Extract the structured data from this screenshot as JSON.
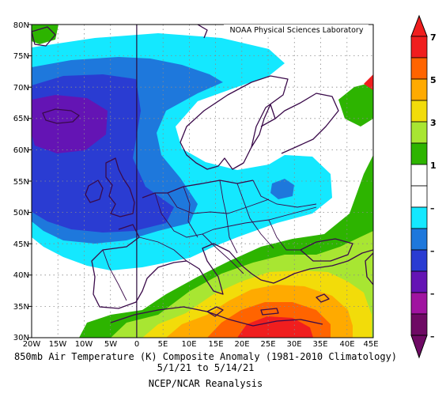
{
  "credit": "NOAA Physical Sciences Laboratory",
  "caption": {
    "line1": "850mb Air Temperature (K) Composite Anomaly (1981-2010 Climatology)",
    "line2": "5/1/21   to 5/14/21",
    "line3": "NCEP/NCAR Reanalysis"
  },
  "axes": {
    "lat_labels": [
      "80N",
      "75N",
      "70N",
      "65N",
      "60N",
      "55N",
      "50N",
      "45N",
      "40N",
      "35N",
      "30N"
    ],
    "lon_labels": [
      "20W",
      "15W",
      "10W",
      "5W",
      "0",
      "5E",
      "10E",
      "15E",
      "20E",
      "25E",
      "30E",
      "35E",
      "40E",
      "45E"
    ],
    "lat_range": [
      30,
      80
    ],
    "lon_range": [
      -20,
      45
    ]
  },
  "colorbar": {
    "labels": [
      "7",
      "5",
      "3",
      "1",
      "–",
      "–",
      "–",
      "–"
    ],
    "colors": [
      "#f01e1e",
      "#ff6400",
      "#ffaa00",
      "#f2dc0a",
      "#a8e632",
      "#2db400",
      "#ffffff",
      "#ffffff",
      "#14e8ff",
      "#1e78dc",
      "#2a3cd2",
      "#6414b4",
      "#a014a0",
      "#6e0a64"
    ]
  }
}
